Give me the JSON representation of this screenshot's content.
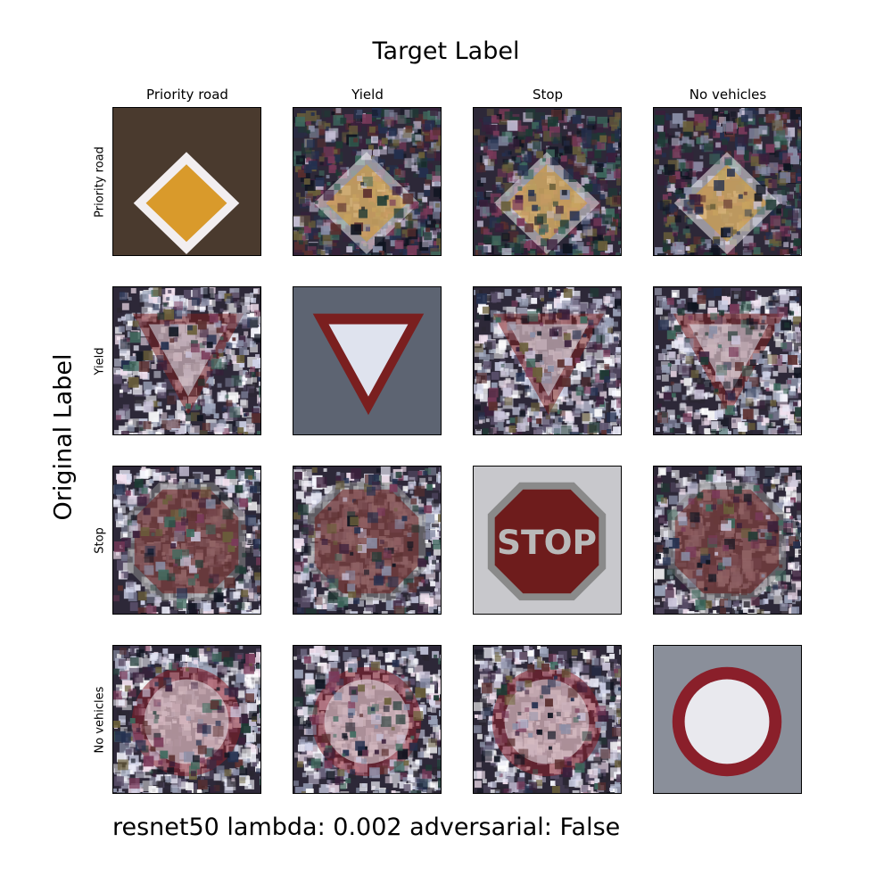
{
  "title": "Target Label",
  "ylabel": "Original Label",
  "columns": [
    "Priority road",
    "Yield",
    "Stop",
    "No vehicles"
  ],
  "rows": [
    "Priority road",
    "Yield",
    "Stop",
    "No vehicles"
  ],
  "caption": "resnet50 lambda: 0.002 adversarial: False"
}
